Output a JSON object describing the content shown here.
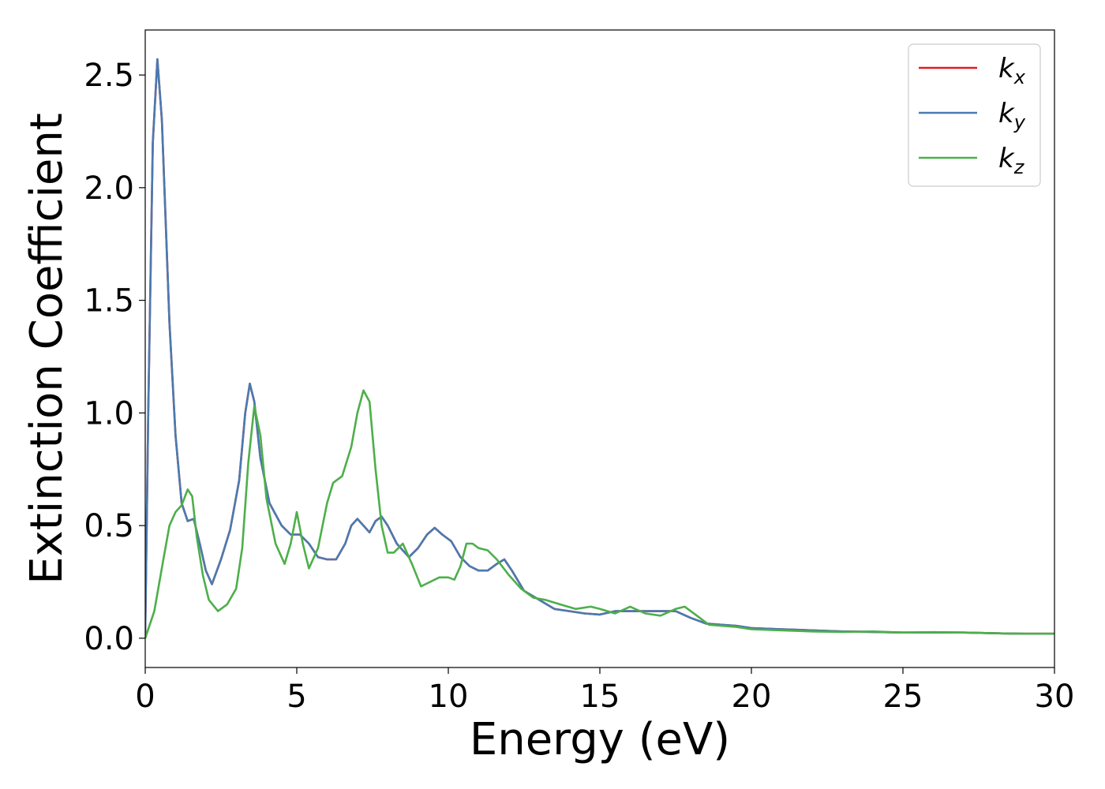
{
  "chart_data": {
    "type": "line",
    "title": "",
    "xlabel": "Energy (eV)",
    "ylabel": "Extinction Coefficient",
    "xlim": [
      0,
      30
    ],
    "ylim": [
      -0.13,
      2.7
    ],
    "xticks": [
      0,
      5,
      10,
      15,
      20,
      25,
      30
    ],
    "xtick_labels": [
      "0",
      "5",
      "10",
      "15",
      "20",
      "25",
      "30"
    ],
    "yticks": [
      0.0,
      0.5,
      1.0,
      1.5,
      2.0,
      2.5
    ],
    "ytick_labels": [
      "0.0",
      "0.5",
      "1.0",
      "1.5",
      "2.0",
      "2.5"
    ],
    "grid": false,
    "legend_position": "top-right",
    "series": [
      {
        "name": "k",
        "subscript": "x",
        "color": "#e41a1c",
        "points": [
          [
            0,
            0.02
          ],
          [
            0.1,
            1.0
          ],
          [
            0.25,
            2.2
          ],
          [
            0.4,
            2.57
          ],
          [
            0.55,
            2.3
          ],
          [
            0.8,
            1.4
          ],
          [
            1.0,
            0.9
          ],
          [
            1.2,
            0.6
          ],
          [
            1.4,
            0.52
          ],
          [
            1.6,
            0.53
          ],
          [
            1.8,
            0.42
          ],
          [
            2.0,
            0.3
          ],
          [
            2.2,
            0.24
          ],
          [
            2.5,
            0.35
          ],
          [
            2.8,
            0.48
          ],
          [
            3.1,
            0.7
          ],
          [
            3.3,
            1.0
          ],
          [
            3.45,
            1.13
          ],
          [
            3.6,
            1.05
          ],
          [
            3.8,
            0.8
          ],
          [
            4.1,
            0.6
          ],
          [
            4.5,
            0.5
          ],
          [
            4.8,
            0.46
          ],
          [
            5.1,
            0.46
          ],
          [
            5.4,
            0.42
          ],
          [
            5.7,
            0.36
          ],
          [
            6.0,
            0.35
          ],
          [
            6.3,
            0.35
          ],
          [
            6.6,
            0.42
          ],
          [
            6.8,
            0.5
          ],
          [
            7.0,
            0.53
          ],
          [
            7.2,
            0.5
          ],
          [
            7.4,
            0.47
          ],
          [
            7.6,
            0.52
          ],
          [
            7.8,
            0.54
          ],
          [
            8.0,
            0.5
          ],
          [
            8.3,
            0.42
          ],
          [
            8.7,
            0.36
          ],
          [
            9.0,
            0.4
          ],
          [
            9.3,
            0.46
          ],
          [
            9.55,
            0.49
          ],
          [
            9.8,
            0.46
          ],
          [
            10.1,
            0.43
          ],
          [
            10.4,
            0.36
          ],
          [
            10.7,
            0.32
          ],
          [
            11.0,
            0.3
          ],
          [
            11.3,
            0.3
          ],
          [
            11.6,
            0.33
          ],
          [
            11.85,
            0.35
          ],
          [
            12.1,
            0.3
          ],
          [
            12.5,
            0.21
          ],
          [
            13.0,
            0.17
          ],
          [
            13.5,
            0.13
          ],
          [
            14.0,
            0.12
          ],
          [
            14.5,
            0.11
          ],
          [
            15.0,
            0.105
          ],
          [
            15.5,
            0.12
          ],
          [
            16.0,
            0.12
          ],
          [
            16.5,
            0.12
          ],
          [
            17.0,
            0.12
          ],
          [
            17.5,
            0.12
          ],
          [
            18.0,
            0.09
          ],
          [
            18.5,
            0.065
          ],
          [
            19.0,
            0.06
          ],
          [
            19.5,
            0.055
          ],
          [
            20.0,
            0.045
          ],
          [
            21.0,
            0.04
          ],
          [
            22.0,
            0.035
          ],
          [
            23.0,
            0.03
          ],
          [
            24.0,
            0.028
          ],
          [
            25.0,
            0.025
          ],
          [
            26.0,
            0.025
          ],
          [
            27.0,
            0.025
          ],
          [
            28.0,
            0.022
          ],
          [
            29.0,
            0.02
          ],
          [
            30.0,
            0.02
          ]
        ]
      },
      {
        "name": "k",
        "subscript": "y",
        "color": "#4a7ab0",
        "points": [
          [
            0,
            0.02
          ],
          [
            0.1,
            1.0
          ],
          [
            0.25,
            2.2
          ],
          [
            0.4,
            2.57
          ],
          [
            0.55,
            2.3
          ],
          [
            0.8,
            1.4
          ],
          [
            1.0,
            0.9
          ],
          [
            1.2,
            0.6
          ],
          [
            1.4,
            0.52
          ],
          [
            1.6,
            0.53
          ],
          [
            1.8,
            0.42
          ],
          [
            2.0,
            0.3
          ],
          [
            2.2,
            0.24
          ],
          [
            2.5,
            0.35
          ],
          [
            2.8,
            0.48
          ],
          [
            3.1,
            0.7
          ],
          [
            3.3,
            1.0
          ],
          [
            3.45,
            1.13
          ],
          [
            3.6,
            1.05
          ],
          [
            3.8,
            0.8
          ],
          [
            4.1,
            0.6
          ],
          [
            4.5,
            0.5
          ],
          [
            4.8,
            0.46
          ],
          [
            5.1,
            0.46
          ],
          [
            5.4,
            0.42
          ],
          [
            5.7,
            0.36
          ],
          [
            6.0,
            0.35
          ],
          [
            6.3,
            0.35
          ],
          [
            6.6,
            0.42
          ],
          [
            6.8,
            0.5
          ],
          [
            7.0,
            0.53
          ],
          [
            7.2,
            0.5
          ],
          [
            7.4,
            0.47
          ],
          [
            7.6,
            0.52
          ],
          [
            7.8,
            0.54
          ],
          [
            8.0,
            0.5
          ],
          [
            8.3,
            0.42
          ],
          [
            8.7,
            0.36
          ],
          [
            9.0,
            0.4
          ],
          [
            9.3,
            0.46
          ],
          [
            9.55,
            0.49
          ],
          [
            9.8,
            0.46
          ],
          [
            10.1,
            0.43
          ],
          [
            10.4,
            0.36
          ],
          [
            10.7,
            0.32
          ],
          [
            11.0,
            0.3
          ],
          [
            11.3,
            0.3
          ],
          [
            11.6,
            0.33
          ],
          [
            11.85,
            0.35
          ],
          [
            12.1,
            0.3
          ],
          [
            12.5,
            0.21
          ],
          [
            13.0,
            0.17
          ],
          [
            13.5,
            0.13
          ],
          [
            14.0,
            0.12
          ],
          [
            14.5,
            0.11
          ],
          [
            15.0,
            0.105
          ],
          [
            15.5,
            0.12
          ],
          [
            16.0,
            0.12
          ],
          [
            16.5,
            0.12
          ],
          [
            17.0,
            0.12
          ],
          [
            17.5,
            0.12
          ],
          [
            18.0,
            0.09
          ],
          [
            18.5,
            0.065
          ],
          [
            19.0,
            0.06
          ],
          [
            19.5,
            0.055
          ],
          [
            20.0,
            0.045
          ],
          [
            21.0,
            0.04
          ],
          [
            22.0,
            0.035
          ],
          [
            23.0,
            0.03
          ],
          [
            24.0,
            0.028
          ],
          [
            25.0,
            0.025
          ],
          [
            26.0,
            0.025
          ],
          [
            27.0,
            0.025
          ],
          [
            28.0,
            0.022
          ],
          [
            29.0,
            0.02
          ],
          [
            30.0,
            0.02
          ]
        ]
      },
      {
        "name": "k",
        "subscript": "z",
        "color": "#4daf4a",
        "points": [
          [
            0,
            0.0
          ],
          [
            0.3,
            0.12
          ],
          [
            0.6,
            0.35
          ],
          [
            0.8,
            0.5
          ],
          [
            1.0,
            0.56
          ],
          [
            1.2,
            0.59
          ],
          [
            1.4,
            0.66
          ],
          [
            1.55,
            0.63
          ],
          [
            1.7,
            0.45
          ],
          [
            1.9,
            0.28
          ],
          [
            2.1,
            0.17
          ],
          [
            2.4,
            0.12
          ],
          [
            2.7,
            0.15
          ],
          [
            3.0,
            0.22
          ],
          [
            3.2,
            0.4
          ],
          [
            3.4,
            0.78
          ],
          [
            3.6,
            1.03
          ],
          [
            3.8,
            0.9
          ],
          [
            4.0,
            0.62
          ],
          [
            4.3,
            0.42
          ],
          [
            4.6,
            0.33
          ],
          [
            4.8,
            0.42
          ],
          [
            5.0,
            0.56
          ],
          [
            5.2,
            0.42
          ],
          [
            5.4,
            0.31
          ],
          [
            5.7,
            0.4
          ],
          [
            6.0,
            0.6
          ],
          [
            6.2,
            0.69
          ],
          [
            6.5,
            0.72
          ],
          [
            6.8,
            0.85
          ],
          [
            7.0,
            1.0
          ],
          [
            7.2,
            1.1
          ],
          [
            7.4,
            1.05
          ],
          [
            7.6,
            0.75
          ],
          [
            7.8,
            0.5
          ],
          [
            8.0,
            0.38
          ],
          [
            8.2,
            0.38
          ],
          [
            8.5,
            0.42
          ],
          [
            8.8,
            0.33
          ],
          [
            9.1,
            0.23
          ],
          [
            9.4,
            0.25
          ],
          [
            9.7,
            0.27
          ],
          [
            10.0,
            0.27
          ],
          [
            10.2,
            0.26
          ],
          [
            10.4,
            0.32
          ],
          [
            10.6,
            0.42
          ],
          [
            10.8,
            0.42
          ],
          [
            11.0,
            0.4
          ],
          [
            11.3,
            0.39
          ],
          [
            11.6,
            0.35
          ],
          [
            12.0,
            0.28
          ],
          [
            12.4,
            0.22
          ],
          [
            12.8,
            0.18
          ],
          [
            13.2,
            0.17
          ],
          [
            13.7,
            0.15
          ],
          [
            14.2,
            0.13
          ],
          [
            14.7,
            0.14
          ],
          [
            15.0,
            0.13
          ],
          [
            15.5,
            0.11
          ],
          [
            16.0,
            0.14
          ],
          [
            16.5,
            0.11
          ],
          [
            17.0,
            0.1
          ],
          [
            17.5,
            0.13
          ],
          [
            17.8,
            0.14
          ],
          [
            18.2,
            0.1
          ],
          [
            18.6,
            0.06
          ],
          [
            19.5,
            0.05
          ],
          [
            20.0,
            0.04
          ],
          [
            21.0,
            0.035
          ],
          [
            22.0,
            0.03
          ],
          [
            23.0,
            0.028
          ],
          [
            24.0,
            0.03
          ],
          [
            25.0,
            0.025
          ],
          [
            26.0,
            0.027
          ],
          [
            27.0,
            0.025
          ],
          [
            28.0,
            0.022
          ],
          [
            29.0,
            0.02
          ],
          [
            30.0,
            0.02
          ]
        ]
      }
    ]
  }
}
